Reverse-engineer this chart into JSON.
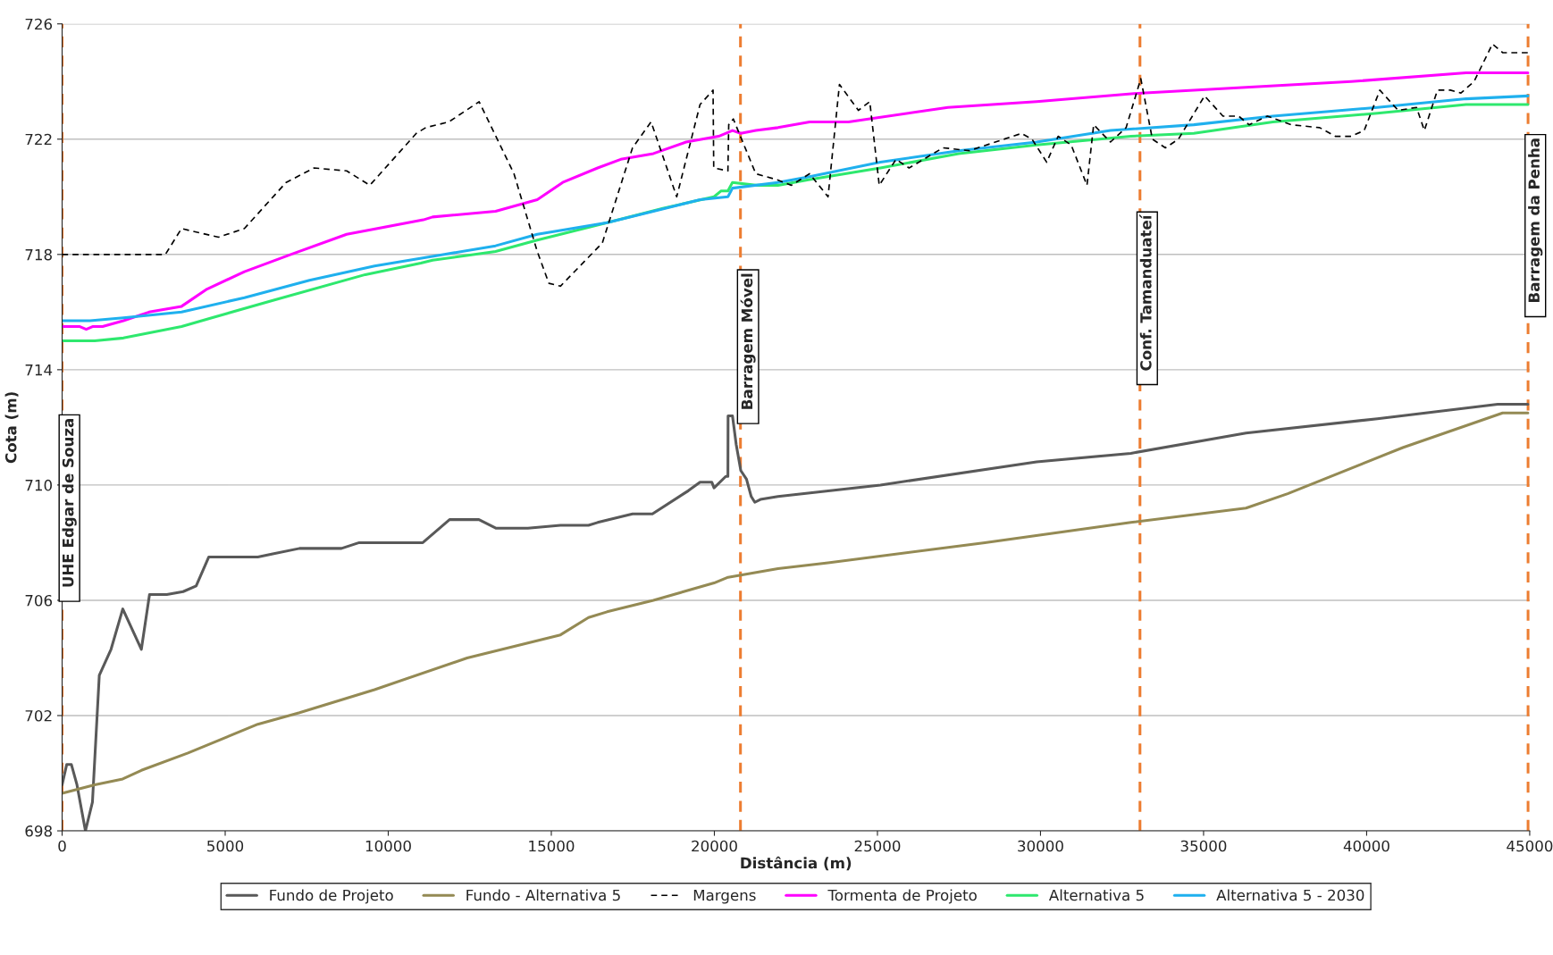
{
  "chart_data": {
    "type": "line",
    "xlabel": "Distância (m)",
    "ylabel": "Cota (m)",
    "xlim": [
      0,
      45000
    ],
    "xticks": [
      0,
      5000,
      10000,
      15000,
      20000,
      25000,
      30000,
      35000,
      40000,
      45000
    ],
    "ylim": [
      698,
      726
    ],
    "yticks": [
      698,
      702,
      706,
      710,
      714,
      718,
      722,
      726
    ],
    "grid": "y",
    "legend": "bottom",
    "marker": "none",
    "series": [
      {
        "name": "Fundo de Projeto",
        "color": "#595959",
        "line_style": "solid",
        "x": [
          0,
          140,
          285,
          455,
          715,
          930,
          1140,
          1500,
          1860,
          2430,
          2680,
          3210,
          3710,
          4110,
          4495,
          6000,
          6425,
          7280,
          8565,
          9110,
          11060,
          11880,
          12780,
          13310,
          14280,
          15280,
          16140,
          16420,
          17490,
          18100,
          19200,
          19560,
          19920,
          19990,
          20350,
          20415,
          20420,
          20555,
          20670,
          20810,
          20985,
          21130,
          21240,
          21410,
          21950,
          25090,
          29880,
          32770,
          36300,
          40330,
          44020,
          44945
        ],
        "values": [
          699.6,
          700.3,
          700.3,
          699.6,
          698,
          699,
          703.4,
          704.3,
          705.7,
          704.3,
          706.2,
          706.2,
          706.3,
          706.5,
          707.5,
          707.5,
          707.6,
          707.8,
          707.8,
          708,
          708,
          708.8,
          708.8,
          708.5,
          708.5,
          708.6,
          708.6,
          708.7,
          709,
          709,
          709.8,
          710.1,
          710.1,
          709.9,
          710.3,
          710.3,
          712.4,
          712.4,
          711.4,
          710.5,
          710.2,
          709.6,
          709.4,
          709.5,
          709.6,
          710,
          710.8,
          711.1,
          711.8,
          712.3,
          712.8,
          712.8
        ]
      },
      {
        "name": "Fundo - Alternativa 5",
        "color": "#948a54",
        "line_style": "solid",
        "x": [
          0,
          1000,
          1860,
          2430,
          3860,
          6000,
          7280,
          9580,
          12420,
          15280,
          16140,
          16710,
          18130,
          19990,
          20420,
          21950,
          23485,
          28295,
          32770,
          36300,
          37580,
          41110,
          44170,
          44945
        ],
        "values": [
          699.3,
          699.6,
          699.8,
          700.1,
          700.7,
          701.7,
          702.1,
          702.9,
          704,
          704.8,
          705.4,
          705.6,
          706,
          706.6,
          706.8,
          707.1,
          707.3,
          708,
          708.7,
          709.2,
          709.7,
          711.3,
          712.5,
          712.5
        ]
      },
      {
        "name": "Margens",
        "color": "#000000",
        "line_style": "dashed",
        "x": [
          0,
          3165,
          3663,
          4020,
          4800,
          5590,
          6870,
          7725,
          8725,
          9435,
          10860,
          11150,
          11860,
          12785,
          13855,
          14570,
          14925,
          15280,
          16565,
          17490,
          18060,
          18845,
          19560,
          19960,
          19980,
          20415,
          20440,
          20580,
          21270,
          21900,
          22360,
          22920,
          23485,
          23835,
          24415,
          24765,
          25055,
          25570,
          25970,
          27010,
          27815,
          29420,
          29740,
          30190,
          30540,
          30940,
          31425,
          31630,
          32145,
          32625,
          33075,
          33430,
          33830,
          34230,
          35030,
          35595,
          36075,
          36395,
          36955,
          37680,
          38560,
          39040,
          39525,
          39925,
          40405,
          40965,
          41530,
          41770,
          42170,
          42570,
          42890,
          43295,
          43855,
          44175,
          44945
        ],
        "values": [
          718,
          718,
          718.9,
          718.8,
          718.6,
          718.9,
          720.5,
          721,
          720.9,
          720.4,
          722.2,
          722.4,
          722.6,
          723.3,
          720.8,
          718.1,
          717,
          716.9,
          718.4,
          721.7,
          722.6,
          720,
          723.2,
          723.7,
          721,
          720.9,
          722.5,
          722.7,
          720.8,
          720.6,
          720.4,
          720.8,
          720,
          723.9,
          723,
          723.3,
          720.4,
          721.3,
          721,
          721.7,
          721.6,
          722.2,
          722,
          721.2,
          722.1,
          721.8,
          720.4,
          722.5,
          721.9,
          722.4,
          724.1,
          722,
          721.7,
          722,
          723.5,
          722.8,
          722.8,
          722.5,
          722.8,
          722.5,
          722.4,
          722.1,
          722.1,
          722.3,
          723.7,
          723,
          723.1,
          722.3,
          723.7,
          723.7,
          723.6,
          724,
          725.3,
          725,
          725
        ]
      },
      {
        "name": "Tormenta de Projeto",
        "color": "#ff00ff",
        "line_style": "solid",
        "x": [
          0,
          528,
          740,
          948,
          1240,
          1880,
          2665,
          3663,
          4445,
          5590,
          7010,
          8725,
          11075,
          11360,
          13290,
          14570,
          15350,
          16420,
          17130,
          18130,
          19130,
          20130,
          20555,
          20810,
          21270,
          21950,
          22920,
          24110,
          27160,
          29880,
          33090,
          36300,
          39525,
          43050,
          44945
        ],
        "values": [
          715.5,
          715.5,
          715.4,
          715.5,
          715.5,
          715.7,
          716,
          716.2,
          716.8,
          717.4,
          718,
          718.7,
          719.2,
          719.3,
          719.5,
          719.9,
          720.5,
          721,
          721.3,
          721.5,
          721.9,
          722.1,
          722.3,
          722.2,
          722.3,
          722.4,
          722.6,
          722.6,
          723.1,
          723.3,
          723.6,
          723.8,
          724,
          724.3,
          724.3
        ]
      },
      {
        "name": "Alternativa 5",
        "color": "#2ee86e",
        "line_style": "solid",
        "x": [
          0,
          1000,
          1880,
          3663,
          4590,
          6440,
          9295,
          11000,
          11360,
          13290,
          14570,
          16710,
          18420,
          19990,
          20200,
          20415,
          20555,
          21270,
          21950,
          22920,
          25090,
          27490,
          29880,
          32770,
          34700,
          37125,
          40330,
          43050,
          44945
        ],
        "values": [
          715,
          715,
          715.1,
          715.5,
          715.8,
          716.4,
          717.3,
          717.7,
          717.8,
          718.1,
          718.5,
          719.1,
          719.6,
          720,
          720.2,
          720.2,
          720.5,
          720.4,
          720.4,
          720.6,
          721,
          721.5,
          721.8,
          722.1,
          722.2,
          722.6,
          722.9,
          723.2,
          723.2
        ]
      },
      {
        "name": "Alternativa 5 - 2030",
        "color": "#1fb0ee",
        "line_style": "solid",
        "x": [
          0,
          855,
          1880,
          3663,
          5590,
          7585,
          9580,
          11720,
          13290,
          14570,
          16710,
          18130,
          19560,
          20415,
          20555,
          21950,
          22920,
          25090,
          27490,
          29880,
          32145,
          34700,
          37125,
          40330,
          43050,
          44945
        ],
        "values": [
          715.7,
          715.7,
          715.8,
          716,
          716.5,
          717.1,
          717.6,
          718,
          718.3,
          718.7,
          719.1,
          719.5,
          719.9,
          720,
          720.3,
          720.5,
          720.7,
          721.2,
          721.6,
          721.9,
          722.3,
          722.5,
          722.8,
          723.1,
          723.4,
          723.5
        ]
      }
    ],
    "ref_lines": [
      {
        "axis": "x",
        "value": 0,
        "label": "UHE Edgar de Souza",
        "color": "#ed7d31",
        "line_style": "dashed"
      },
      {
        "axis": "x",
        "value": 20800,
        "label": "Barragem Móvel",
        "color": "#ed7d31",
        "line_style": "dashed"
      },
      {
        "axis": "x",
        "value": 33050,
        "label": "Conf. Tamanduateí",
        "color": "#ed7d31",
        "line_style": "dashed"
      },
      {
        "axis": "x",
        "value": 44950,
        "label": "Barragem da Penha",
        "color": "#ed7d31",
        "line_style": "dashed"
      }
    ]
  }
}
